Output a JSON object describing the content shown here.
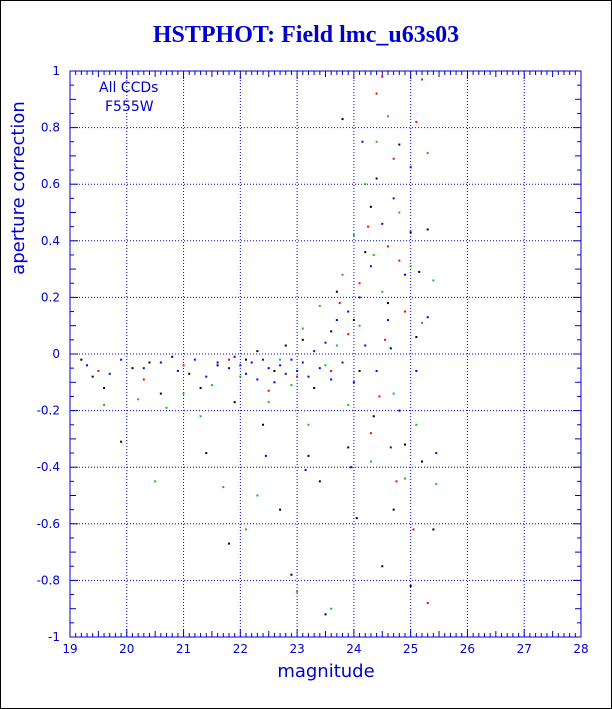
{
  "chart_data": {
    "type": "scatter",
    "title": "HSTPHOT: Field lmc_u63s03",
    "xlabel": "magnitude",
    "ylabel": "aperture correction",
    "xlim": [
      19,
      28
    ],
    "ylim": [
      -1,
      1
    ],
    "xticks": [
      "19",
      "20",
      "21",
      "22",
      "23",
      "24",
      "25",
      "26",
      "27",
      "28"
    ],
    "yticks": [
      "-1",
      "-0.8",
      "-0.6",
      "-0.4",
      "-0.2",
      "0",
      "0.2",
      "0.4",
      "0.6",
      "0.8",
      "1"
    ],
    "grid": true,
    "annotation": [
      "All CCDs",
      "F555W"
    ],
    "colors": {
      "axis": "#0000cc",
      "grid": "#0000cc",
      "title": "#0000cc",
      "series": [
        "#000000",
        "#ff0000",
        "#00cc00",
        "#0000ff"
      ]
    },
    "series": [
      {
        "color": "#000000",
        "points": [
          [
            19.2,
            -0.02
          ],
          [
            19.4,
            -0.08
          ],
          [
            19.6,
            -0.12
          ],
          [
            19.9,
            -0.31
          ],
          [
            20.1,
            -0.05
          ],
          [
            20.4,
            -0.03
          ],
          [
            20.8,
            -0.01
          ],
          [
            21.1,
            -0.07
          ],
          [
            21.4,
            -0.35
          ],
          [
            21.6,
            -0.04
          ],
          [
            21.8,
            -0.67
          ],
          [
            22.1,
            -0.02
          ],
          [
            22.3,
            0.01
          ],
          [
            22.6,
            -0.06
          ],
          [
            22.7,
            -0.55
          ],
          [
            22.9,
            -0.78
          ],
          [
            23.1,
            0.05
          ],
          [
            23.3,
            -0.12
          ],
          [
            23.4,
            -0.45
          ],
          [
            23.6,
            0.08
          ],
          [
            23.7,
            0.22
          ],
          [
            23.8,
            0.83
          ],
          [
            23.9,
            -0.33
          ],
          [
            24.0,
            0.12
          ],
          [
            24.1,
            -0.06
          ],
          [
            24.2,
            0.36
          ],
          [
            24.3,
            0.52
          ],
          [
            24.35,
            -0.22
          ],
          [
            24.4,
            0.62
          ],
          [
            24.5,
            -0.75
          ],
          [
            24.6,
            0.18
          ],
          [
            24.7,
            -0.55
          ],
          [
            24.8,
            0.74
          ],
          [
            24.9,
            -0.32
          ],
          [
            25.0,
            -0.82
          ],
          [
            25.1,
            0.06
          ],
          [
            25.2,
            -0.38
          ],
          [
            25.3,
            0.44
          ],
          [
            25.4,
            -0.62
          ],
          [
            25.0,
            0.43
          ],
          [
            21.3,
            -0.12
          ],
          [
            22.4,
            -0.25
          ],
          [
            23.2,
            -0.36
          ],
          [
            23.5,
            -0.92
          ],
          [
            24.05,
            -0.58
          ],
          [
            24.65,
            0.02
          ],
          [
            25.15,
            0.29
          ],
          [
            21.9,
            -0.17
          ],
          [
            20.6,
            -0.14
          ],
          [
            22.8,
            0.03
          ]
        ]
      },
      {
        "color": "#ff0000",
        "points": [
          [
            19.5,
            -0.06
          ],
          [
            20.3,
            -0.09
          ],
          [
            21.0,
            -0.04
          ],
          [
            21.8,
            -0.02
          ],
          [
            22.5,
            -0.13
          ],
          [
            23.0,
            -0.08
          ],
          [
            23.6,
            -0.06
          ],
          [
            23.9,
            0.07
          ],
          [
            24.1,
            0.25
          ],
          [
            24.3,
            -0.28
          ],
          [
            24.4,
            0.92
          ],
          [
            24.5,
            0.98
          ],
          [
            24.6,
            0.38
          ],
          [
            24.7,
            0.69
          ],
          [
            24.75,
            -0.45
          ],
          [
            24.8,
            0.33
          ],
          [
            24.9,
            0.15
          ],
          [
            25.1,
            0.82
          ],
          [
            25.2,
            0.97
          ],
          [
            25.3,
            -0.88
          ],
          [
            24.45,
            -0.15
          ],
          [
            23.75,
            0.18
          ],
          [
            24.25,
            0.45
          ],
          [
            25.05,
            -0.62
          ],
          [
            24.55,
            0.05
          ]
        ]
      },
      {
        "color": "#00cc00",
        "points": [
          [
            19.6,
            -0.18
          ],
          [
            20.2,
            -0.16
          ],
          [
            20.5,
            -0.45
          ],
          [
            20.7,
            -0.19
          ],
          [
            21.0,
            -0.14
          ],
          [
            21.3,
            -0.22
          ],
          [
            21.5,
            -0.11
          ],
          [
            21.7,
            -0.47
          ],
          [
            22.0,
            -0.08
          ],
          [
            22.1,
            -0.62
          ],
          [
            22.3,
            -0.5
          ],
          [
            22.5,
            -0.17
          ],
          [
            22.7,
            -0.02
          ],
          [
            22.9,
            -0.11
          ],
          [
            23.0,
            -0.84
          ],
          [
            23.1,
            0.09
          ],
          [
            23.2,
            -0.25
          ],
          [
            23.4,
            0.17
          ],
          [
            23.5,
            -0.04
          ],
          [
            23.6,
            -0.9
          ],
          [
            23.8,
            0.28
          ],
          [
            23.9,
            -0.18
          ],
          [
            24.0,
            0.42
          ],
          [
            24.1,
            0.1
          ],
          [
            24.2,
            0.6
          ],
          [
            24.3,
            -0.38
          ],
          [
            24.4,
            0.75
          ],
          [
            24.5,
            0.22
          ],
          [
            24.6,
            0.84
          ],
          [
            24.7,
            -0.14
          ],
          [
            24.8,
            0.5
          ],
          [
            24.9,
            -0.44
          ],
          [
            25.0,
            0.31
          ],
          [
            25.1,
            -0.25
          ],
          [
            25.2,
            0.11
          ],
          [
            25.3,
            0.71
          ],
          [
            25.4,
            0.26
          ],
          [
            25.45,
            -0.46
          ],
          [
            24.35,
            0.35
          ],
          [
            23.7,
            0.03
          ]
        ]
      },
      {
        "color": "#0000ff",
        "points": [
          [
            19.3,
            -0.04
          ],
          [
            19.7,
            -0.07
          ],
          [
            19.9,
            -0.02
          ],
          [
            20.3,
            -0.05
          ],
          [
            20.6,
            -0.03
          ],
          [
            20.9,
            -0.06
          ],
          [
            21.2,
            -0.02
          ],
          [
            21.4,
            -0.08
          ],
          [
            21.6,
            -0.03
          ],
          [
            21.8,
            -0.05
          ],
          [
            21.9,
            -0.01
          ],
          [
            22.0,
            -0.04
          ],
          [
            22.1,
            -0.07
          ],
          [
            22.2,
            -0.03
          ],
          [
            22.3,
            -0.09
          ],
          [
            22.4,
            -0.02
          ],
          [
            22.5,
            -0.05
          ],
          [
            22.6,
            -0.1
          ],
          [
            22.7,
            -0.04
          ],
          [
            22.8,
            -0.07
          ],
          [
            22.9,
            -0.02
          ],
          [
            23.0,
            -0.06
          ],
          [
            23.1,
            -0.03
          ],
          [
            23.2,
            -0.08
          ],
          [
            23.3,
            0.01
          ],
          [
            23.4,
            -0.05
          ],
          [
            23.5,
            0.04
          ],
          [
            23.6,
            -0.09
          ],
          [
            23.7,
            0.12
          ],
          [
            23.8,
            -0.03
          ],
          [
            23.9,
            0.15
          ],
          [
            24.0,
            -0.1
          ],
          [
            24.1,
            0.2
          ],
          [
            24.2,
            0.03
          ],
          [
            24.3,
            0.31
          ],
          [
            24.4,
            -0.06
          ],
          [
            24.5,
            0.46
          ],
          [
            24.6,
            0.12
          ],
          [
            24.7,
            0.55
          ],
          [
            24.8,
            -0.2
          ],
          [
            24.9,
            0.28
          ],
          [
            25.0,
            0.66
          ],
          [
            25.1,
            -0.06
          ],
          [
            25.3,
            0.13
          ],
          [
            25.45,
            -0.35
          ],
          [
            24.15,
            0.75
          ],
          [
            23.95,
            -0.4
          ],
          [
            24.65,
            -0.33
          ],
          [
            22.45,
            -0.36
          ],
          [
            23.15,
            -0.41
          ]
        ]
      }
    ]
  }
}
